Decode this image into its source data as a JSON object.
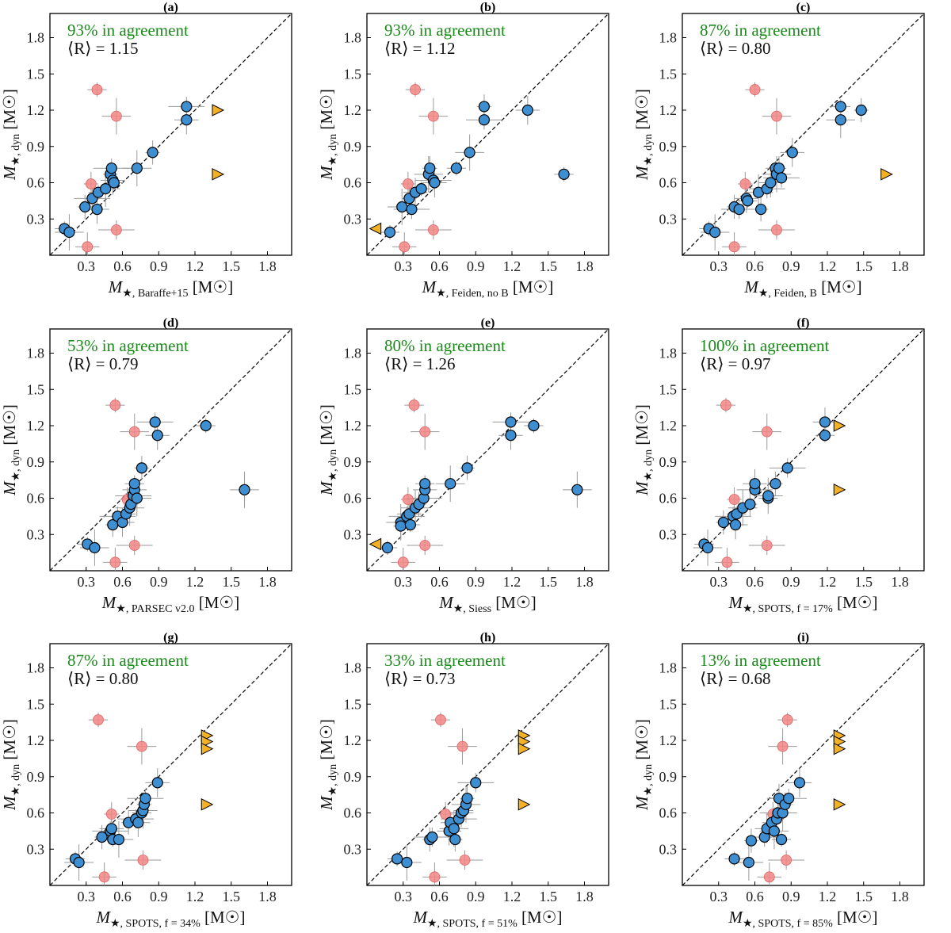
{
  "colors": {
    "agree_point": "#3d8fd1",
    "disagree_point": "#f28585",
    "limit_marker": "#f5b124",
    "agreement_text": "#1a8a1a"
  },
  "chart_data": [
    {
      "panel": "(a)",
      "type": "scatter",
      "xlabel": "M★, Baraffe+15 [M☉]",
      "ylabel": "M★, dyn [M☉]",
      "agreement_text": "93% in agreement",
      "ratio_text": "⟨R⟩ = 1.15",
      "xlim": [
        0.0,
        2.0
      ],
      "ylim": [
        0.0,
        2.0
      ],
      "xticks": [
        "0.3",
        "0.6",
        "0.9",
        "1.2",
        "1.5",
        "1.8"
      ],
      "yticks": [
        "0.3",
        "0.6",
        "0.9",
        "1.2",
        "1.5",
        "1.8"
      ],
      "agree_points": [
        [
          0.12,
          0.22
        ],
        [
          0.16,
          0.19
        ],
        [
          0.29,
          0.4
        ],
        [
          0.35,
          0.47
        ],
        [
          0.39,
          0.38
        ],
        [
          0.4,
          0.52
        ],
        [
          0.46,
          0.55
        ],
        [
          0.5,
          0.67
        ],
        [
          0.51,
          0.72
        ],
        [
          0.52,
          0.62
        ],
        [
          0.53,
          0.6
        ],
        [
          0.72,
          0.72
        ],
        [
          0.85,
          0.85
        ],
        [
          1.13,
          1.23
        ],
        [
          1.13,
          1.12
        ]
      ],
      "disagree_points": [
        [
          0.39,
          1.37
        ],
        [
          0.55,
          1.15
        ],
        [
          0.34,
          0.59
        ],
        [
          0.55,
          0.21
        ],
        [
          0.31,
          0.07
        ]
      ],
      "limit_markers": [
        {
          "x": 1.39,
          "y": 1.2,
          "dir": "right"
        },
        {
          "x": 1.39,
          "y": 0.67,
          "dir": "right"
        }
      ]
    },
    {
      "panel": "(b)",
      "type": "scatter",
      "xlabel": "M★, Feiden, no B [M☉]",
      "ylabel": "M★, dyn [M☉]",
      "agreement_text": "93% in agreement",
      "ratio_text": "⟨R⟩ = 1.12",
      "xlim": [
        0.0,
        2.0
      ],
      "ylim": [
        0.0,
        2.0
      ],
      "xticks": [
        "0.3",
        "0.6",
        "0.9",
        "1.2",
        "1.5",
        "1.8"
      ],
      "yticks": [
        "0.3",
        "0.6",
        "0.9",
        "1.2",
        "1.5",
        "1.8"
      ],
      "agree_points": [
        [
          0.19,
          0.19
        ],
        [
          0.29,
          0.4
        ],
        [
          0.35,
          0.47
        ],
        [
          0.37,
          0.38
        ],
        [
          0.4,
          0.52
        ],
        [
          0.45,
          0.55
        ],
        [
          0.51,
          0.67
        ],
        [
          0.52,
          0.72
        ],
        [
          0.55,
          0.62
        ],
        [
          0.56,
          0.6
        ],
        [
          0.74,
          0.72
        ],
        [
          0.85,
          0.85
        ],
        [
          0.97,
          1.23
        ],
        [
          0.97,
          1.12
        ],
        [
          1.33,
          1.2
        ],
        [
          1.63,
          0.67
        ]
      ],
      "disagree_points": [
        [
          0.4,
          1.37
        ],
        [
          0.55,
          1.15
        ],
        [
          0.34,
          0.59
        ],
        [
          0.55,
          0.21
        ],
        [
          0.31,
          0.07
        ]
      ],
      "limit_markers": [
        {
          "x": 0.07,
          "y": 0.22,
          "dir": "left"
        }
      ]
    },
    {
      "panel": "(c)",
      "type": "scatter",
      "xlabel": "M★, Feiden, B [M☉]",
      "ylabel": "M★, dyn [M☉]",
      "agreement_text": "87% in agreement",
      "ratio_text": "⟨R⟩ = 0.80",
      "xlim": [
        0.0,
        2.0
      ],
      "ylim": [
        0.0,
        2.0
      ],
      "xticks": [
        "0.3",
        "0.6",
        "0.9",
        "1.2",
        "1.5",
        "1.8"
      ],
      "yticks": [
        "0.3",
        "0.6",
        "0.9",
        "1.2",
        "1.5",
        "1.8"
      ],
      "agree_points": [
        [
          0.22,
          0.22
        ],
        [
          0.27,
          0.19
        ],
        [
          0.43,
          0.4
        ],
        [
          0.47,
          0.38
        ],
        [
          0.53,
          0.47
        ],
        [
          0.54,
          0.45
        ],
        [
          0.63,
          0.52
        ],
        [
          0.65,
          0.38
        ],
        [
          0.7,
          0.55
        ],
        [
          0.73,
          0.6
        ],
        [
          0.77,
          0.72
        ],
        [
          0.78,
          0.67
        ],
        [
          0.8,
          0.72
        ],
        [
          0.82,
          0.64
        ],
        [
          0.91,
          0.85
        ],
        [
          1.31,
          1.23
        ],
        [
          1.31,
          1.12
        ],
        [
          1.48,
          1.2
        ]
      ],
      "disagree_points": [
        [
          0.6,
          1.37
        ],
        [
          0.78,
          1.15
        ],
        [
          0.52,
          0.59
        ],
        [
          0.78,
          0.21
        ],
        [
          0.43,
          0.07
        ]
      ],
      "limit_markers": [
        {
          "x": 1.69,
          "y": 0.67,
          "dir": "right"
        }
      ]
    },
    {
      "panel": "(d)",
      "type": "scatter",
      "xlabel": "M★, PARSEC v2.0 [M☉]",
      "ylabel": "M★, dyn [M☉]",
      "agreement_text": "53% in agreement",
      "ratio_text": "⟨R⟩ = 0.79",
      "xlim": [
        0.0,
        2.0
      ],
      "ylim": [
        0.0,
        2.0
      ],
      "xticks": [
        "0.3",
        "0.6",
        "0.9",
        "1.2",
        "1.5",
        "1.8"
      ],
      "yticks": [
        "0.3",
        "0.6",
        "0.9",
        "1.2",
        "1.5",
        "1.8"
      ],
      "agree_points": [
        [
          0.31,
          0.22
        ],
        [
          0.37,
          0.19
        ],
        [
          0.52,
          0.38
        ],
        [
          0.56,
          0.45
        ],
        [
          0.6,
          0.4
        ],
        [
          0.63,
          0.47
        ],
        [
          0.66,
          0.52
        ],
        [
          0.67,
          0.55
        ],
        [
          0.69,
          0.62
        ],
        [
          0.7,
          0.67
        ],
        [
          0.7,
          0.72
        ],
        [
          0.72,
          0.6
        ],
        [
          0.76,
          0.85
        ],
        [
          0.87,
          1.23
        ],
        [
          0.89,
          1.12
        ],
        [
          1.29,
          1.2
        ],
        [
          1.61,
          0.67
        ]
      ],
      "disagree_points": [
        [
          0.54,
          1.37
        ],
        [
          0.7,
          1.15
        ],
        [
          0.64,
          0.59
        ],
        [
          0.7,
          0.21
        ],
        [
          0.54,
          0.07
        ]
      ],
      "limit_markers": []
    },
    {
      "panel": "(e)",
      "type": "scatter",
      "xlabel": "M★, Siess [M☉]",
      "ylabel": "M★, dyn [M☉]",
      "agreement_text": "80% in agreement",
      "ratio_text": "⟨R⟩ = 1.26",
      "xlim": [
        0.0,
        2.0
      ],
      "ylim": [
        0.0,
        2.0
      ],
      "xticks": [
        "0.3",
        "0.6",
        "0.9",
        "1.2",
        "1.5",
        "1.8"
      ],
      "yticks": [
        "0.3",
        "0.6",
        "0.9",
        "1.2",
        "1.5",
        "1.8"
      ],
      "agree_points": [
        [
          0.17,
          0.19
        ],
        [
          0.28,
          0.4
        ],
        [
          0.28,
          0.37
        ],
        [
          0.33,
          0.45
        ],
        [
          0.35,
          0.47
        ],
        [
          0.36,
          0.38
        ],
        [
          0.4,
          0.52
        ],
        [
          0.43,
          0.55
        ],
        [
          0.47,
          0.6
        ],
        [
          0.48,
          0.67
        ],
        [
          0.48,
          0.72
        ],
        [
          0.69,
          0.72
        ],
        [
          0.83,
          0.85
        ],
        [
          1.19,
          1.23
        ],
        [
          1.19,
          1.12
        ],
        [
          1.38,
          1.2
        ],
        [
          1.74,
          0.67
        ]
      ],
      "disagree_points": [
        [
          0.39,
          1.37
        ],
        [
          0.48,
          1.15
        ],
        [
          0.34,
          0.59
        ],
        [
          0.48,
          0.21
        ],
        [
          0.3,
          0.07
        ]
      ],
      "limit_markers": [
        {
          "x": 0.07,
          "y": 0.22,
          "dir": "left"
        }
      ]
    },
    {
      "panel": "(f)",
      "type": "scatter",
      "xlabel": "M★, SPOTS, f = 17% [M☉]",
      "ylabel": "M★, dyn [M☉]",
      "agreement_text": "100% in agreement",
      "ratio_text": "⟨R⟩ = 0.97",
      "xlim": [
        0.0,
        2.0
      ],
      "ylim": [
        0.0,
        2.0
      ],
      "xticks": [
        "0.3",
        "0.6",
        "0.9",
        "1.2",
        "1.5",
        "1.8"
      ],
      "yticks": [
        "0.3",
        "0.6",
        "0.9",
        "1.2",
        "1.5",
        "1.8"
      ],
      "agree_points": [
        [
          0.18,
          0.22
        ],
        [
          0.21,
          0.19
        ],
        [
          0.34,
          0.4
        ],
        [
          0.42,
          0.45
        ],
        [
          0.44,
          0.38
        ],
        [
          0.45,
          0.47
        ],
        [
          0.5,
          0.52
        ],
        [
          0.56,
          0.55
        ],
        [
          0.6,
          0.67
        ],
        [
          0.6,
          0.72
        ],
        [
          0.71,
          0.6
        ],
        [
          0.71,
          0.62
        ],
        [
          0.77,
          0.72
        ],
        [
          0.87,
          0.85
        ],
        [
          1.18,
          1.23
        ],
        [
          1.18,
          1.12
        ]
      ],
      "disagree_points": [
        [
          0.36,
          1.37
        ],
        [
          0.7,
          1.15
        ],
        [
          0.43,
          0.59
        ],
        [
          0.7,
          0.21
        ],
        [
          0.37,
          0.07
        ]
      ],
      "limit_markers": [
        {
          "x": 1.3,
          "y": 1.2,
          "dir": "right"
        },
        {
          "x": 1.3,
          "y": 0.67,
          "dir": "right"
        }
      ]
    },
    {
      "panel": "(g)",
      "type": "scatter",
      "xlabel": "M★, SPOTS, f = 34% [M☉]",
      "ylabel": "M★, dyn [M☉]",
      "agreement_text": "87% in agreement",
      "ratio_text": "⟨R⟩ = 0.80",
      "xlim": [
        0.0,
        2.0
      ],
      "ylim": [
        0.0,
        2.0
      ],
      "xticks": [
        "0.3",
        "0.6",
        "0.9",
        "1.2",
        "1.5",
        "1.8"
      ],
      "yticks": [
        "0.3",
        "0.6",
        "0.9",
        "1.2",
        "1.5",
        "1.8"
      ],
      "agree_points": [
        [
          0.21,
          0.22
        ],
        [
          0.24,
          0.19
        ],
        [
          0.43,
          0.4
        ],
        [
          0.5,
          0.45
        ],
        [
          0.51,
          0.47
        ],
        [
          0.52,
          0.38
        ],
        [
          0.57,
          0.38
        ],
        [
          0.65,
          0.52
        ],
        [
          0.71,
          0.55
        ],
        [
          0.73,
          0.52
        ],
        [
          0.76,
          0.6
        ],
        [
          0.77,
          0.62
        ],
        [
          0.78,
          0.67
        ],
        [
          0.79,
          0.72
        ],
        [
          0.89,
          0.85
        ]
      ],
      "disagree_points": [
        [
          0.4,
          1.37
        ],
        [
          0.76,
          1.15
        ],
        [
          0.51,
          0.59
        ],
        [
          0.77,
          0.21
        ],
        [
          0.45,
          0.07
        ]
      ],
      "limit_markers": [
        {
          "x": 1.3,
          "y": 1.24,
          "dir": "right"
        },
        {
          "x": 1.3,
          "y": 1.19,
          "dir": "right"
        },
        {
          "x": 1.3,
          "y": 1.13,
          "dir": "right"
        },
        {
          "x": 1.3,
          "y": 0.67,
          "dir": "right"
        }
      ]
    },
    {
      "panel": "(h)",
      "type": "scatter",
      "xlabel": "M★, SPOTS, f = 51% [M☉]",
      "ylabel": "M★, dyn [M☉]",
      "agreement_text": "33% in agreement",
      "ratio_text": "⟨R⟩ = 0.73",
      "xlim": [
        0.0,
        2.0
      ],
      "ylim": [
        0.0,
        2.0
      ],
      "xticks": [
        "0.3",
        "0.6",
        "0.9",
        "1.2",
        "1.5",
        "1.8"
      ],
      "yticks": [
        "0.3",
        "0.6",
        "0.9",
        "1.2",
        "1.5",
        "1.8"
      ],
      "agree_points": [
        [
          0.25,
          0.22
        ],
        [
          0.33,
          0.19
        ],
        [
          0.52,
          0.38
        ],
        [
          0.54,
          0.4
        ],
        [
          0.68,
          0.45
        ],
        [
          0.69,
          0.52
        ],
        [
          0.72,
          0.47
        ],
        [
          0.73,
          0.38
        ],
        [
          0.76,
          0.55
        ],
        [
          0.78,
          0.6
        ],
        [
          0.8,
          0.62
        ],
        [
          0.82,
          0.67
        ],
        [
          0.83,
          0.72
        ],
        [
          0.9,
          0.85
        ]
      ],
      "disagree_points": [
        [
          0.61,
          1.37
        ],
        [
          0.79,
          1.15
        ],
        [
          0.65,
          0.59
        ],
        [
          0.81,
          0.21
        ],
        [
          0.56,
          0.07
        ]
      ],
      "limit_markers": [
        {
          "x": 1.3,
          "y": 1.24,
          "dir": "right"
        },
        {
          "x": 1.3,
          "y": 1.19,
          "dir": "right"
        },
        {
          "x": 1.3,
          "y": 1.13,
          "dir": "right"
        },
        {
          "x": 1.3,
          "y": 0.67,
          "dir": "right"
        }
      ]
    },
    {
      "panel": "(i)",
      "type": "scatter",
      "xlabel": "M★, SPOTS, f = 85% [M☉]",
      "ylabel": "M★, dyn [M☉]",
      "agreement_text": "13% in agreement",
      "ratio_text": "⟨R⟩ = 0.68",
      "xlim": [
        0.0,
        2.0
      ],
      "ylim": [
        0.0,
        2.0
      ],
      "xticks": [
        "0.3",
        "0.6",
        "0.9",
        "1.2",
        "1.5",
        "1.8"
      ],
      "yticks": [
        "0.3",
        "0.6",
        "0.9",
        "1.2",
        "1.5",
        "1.8"
      ],
      "agree_points": [
        [
          0.43,
          0.22
        ],
        [
          0.55,
          0.19
        ],
        [
          0.57,
          0.37
        ],
        [
          0.68,
          0.4
        ],
        [
          0.7,
          0.47
        ],
        [
          0.74,
          0.52
        ],
        [
          0.76,
          0.45
        ],
        [
          0.78,
          0.55
        ],
        [
          0.79,
          0.6
        ],
        [
          0.8,
          0.72
        ],
        [
          0.82,
          0.38
        ],
        [
          0.83,
          0.6
        ],
        [
          0.85,
          0.67
        ],
        [
          0.88,
          0.72
        ],
        [
          0.97,
          0.85
        ]
      ],
      "disagree_points": [
        [
          0.87,
          1.37
        ],
        [
          0.83,
          1.15
        ],
        [
          0.75,
          0.59
        ],
        [
          0.86,
          0.21
        ],
        [
          0.72,
          0.07
        ]
      ],
      "limit_markers": [
        {
          "x": 1.3,
          "y": 1.24,
          "dir": "right"
        },
        {
          "x": 1.3,
          "y": 1.19,
          "dir": "right"
        },
        {
          "x": 1.3,
          "y": 1.13,
          "dir": "right"
        },
        {
          "x": 1.3,
          "y": 0.67,
          "dir": "right"
        }
      ]
    }
  ]
}
